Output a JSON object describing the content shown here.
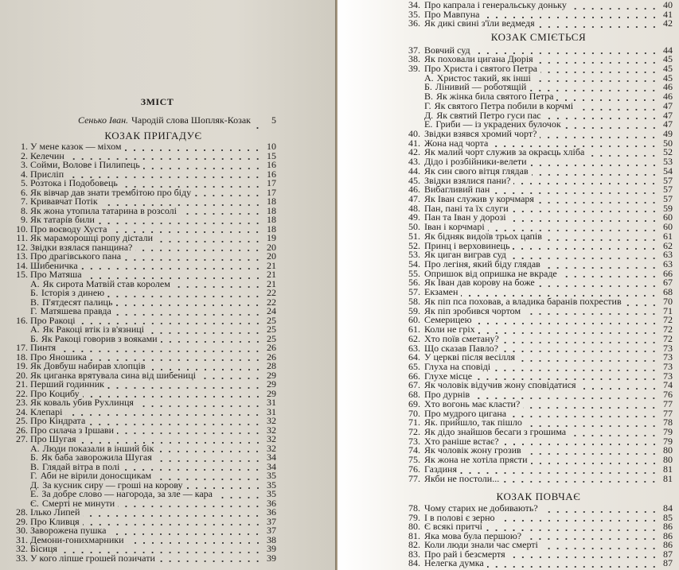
{
  "pages": [
    {
      "title": "ЗМІСТ",
      "intro": {
        "author": "Сенько Іван.",
        "title": "Чародій слова Шопляк-Козак",
        "page": "5"
      },
      "sections": [
        {
          "heading": "КОЗАК ПРИГАДУЄ",
          "entries": [
            {
              "num": "1.",
              "title": "У мене казок — міхом",
              "page": "10"
            },
            {
              "num": "2.",
              "title": "Келечин",
              "page": "15"
            },
            {
              "num": "3.",
              "title": "Сойми, Волове і Пилипець",
              "page": "16"
            },
            {
              "num": "4.",
              "title": "Прислiп",
              "page": "16"
            },
            {
              "num": "5.",
              "title": "Розтока і Подобовець",
              "page": "17"
            },
            {
              "num": "6.",
              "title": "Як вівчар дав знати трембітою про біду",
              "page": "17"
            },
            {
              "num": "7.",
              "title": "Кривавчат Потік",
              "page": "18"
            },
            {
              "num": "8.",
              "title": "Як жона утопила татарина в розсолі",
              "page": "18"
            },
            {
              "num": "9.",
              "title": "Як татарів били",
              "page": "18"
            },
            {
              "num": "10.",
              "title": "Про воєводу Хуста",
              "page": "18"
            },
            {
              "num": "11.",
              "title": "Як мараморошці ропу дістали",
              "page": "19"
            },
            {
              "num": "12.",
              "title": "Звідки взялася панщина?",
              "page": "20"
            },
            {
              "num": "13.",
              "title": "Про драгівського пана",
              "page": "20"
            },
            {
              "num": "14.",
              "title": "Шибеничка",
              "page": "21"
            },
            {
              "num": "15.",
              "title": "Про Матяша",
              "page": "21",
              "sub": [
                {
                  "letter": "А.",
                  "title": "Як сирота Матвій став королем",
                  "page": "21"
                },
                {
                  "letter": "Б.",
                  "title": "Історія з динею",
                  "page": "22"
                },
                {
                  "letter": "В.",
                  "title": "П'ятдесят палиць",
                  "page": "22"
                },
                {
                  "letter": "Г.",
                  "title": "Матяшева правда",
                  "page": "24"
                }
              ]
            },
            {
              "num": "16.",
              "title": "Про Ракоці",
              "page": "25",
              "sub": [
                {
                  "letter": "А.",
                  "title": "Як Ракоці втік із в'язниці",
                  "page": "25"
                },
                {
                  "letter": "Б.",
                  "title": "Як Ракоці говорив з вояками",
                  "page": "25"
                }
              ]
            },
            {
              "num": "17.",
              "title": "Пинтя",
              "page": "26"
            },
            {
              "num": "18.",
              "title": "Про Яношика",
              "page": "26"
            },
            {
              "num": "19.",
              "title": "Як Довбуш набирав хлопців",
              "page": "28"
            },
            {
              "num": "20.",
              "title": "Як циганка врятувала сина від шибениці",
              "page": "29"
            },
            {
              "num": "21.",
              "title": "Перший годинник",
              "page": "29"
            },
            {
              "num": "22.",
              "title": "Про Коцибу",
              "page": "29"
            },
            {
              "num": "23.",
              "title": "Як коваль убив Рухлинця",
              "page": "31"
            },
            {
              "num": "24.",
              "title": "Клепарі",
              "page": "31"
            },
            {
              "num": "25.",
              "title": "Про Кіндрата",
              "page": "32"
            },
            {
              "num": "26.",
              "title": "Про силача з Іршави",
              "page": "32"
            },
            {
              "num": "27.",
              "title": "Про Шугая",
              "page": "32",
              "sub": [
                {
                  "letter": "А.",
                  "title": "Люди показали в інший бік",
                  "page": "32"
                },
                {
                  "letter": "Б.",
                  "title": "Як баба заворожила Шугая",
                  "page": "34"
                },
                {
                  "letter": "В.",
                  "title": "Глядай вітра в полі",
                  "page": "34"
                },
                {
                  "letter": "Г.",
                  "title": "Аби не вірили доносщикам",
                  "page": "35"
                },
                {
                  "letter": "Д.",
                  "title": "За кусник сиру — гроші на корову",
                  "page": "35"
                },
                {
                  "letter": "Е.",
                  "title": "За добре слово — нагорода, за зле — кара",
                  "page": "35"
                },
                {
                  "letter": "Є.",
                  "title": "Смерті не минути",
                  "page": "36"
                }
              ]
            },
            {
              "num": "28.",
              "title": "Ілько Липей",
              "page": "36"
            },
            {
              "num": "29.",
              "title": "Про Кливця",
              "page": "37"
            },
            {
              "num": "30.",
              "title": "Заворожена пушка",
              "page": "37"
            },
            {
              "num": "31.",
              "title": "Демони-гонихмарники",
              "page": "38"
            },
            {
              "num": "32.",
              "title": "Бісиця",
              "page": "39"
            },
            {
              "num": "33.",
              "title": "У кого ліпше грошей позичати",
              "page": "39"
            }
          ]
        }
      ]
    },
    {
      "sections": [
        {
          "heading": "",
          "entries": [
            {
              "num": "34.",
              "title": "Про капрала і генеральську доньку",
              "page": "40"
            },
            {
              "num": "35.",
              "title": "Про Мавпуна",
              "page": "41"
            },
            {
              "num": "36.",
              "title": "Як дикі свині з'їли ведмедя",
              "page": "42"
            }
          ]
        },
        {
          "heading": "КОЗАК СМІЄТЬСЯ",
          "entries": [
            {
              "num": "37.",
              "title": "Вовчий суд",
              "page": "44"
            },
            {
              "num": "38.",
              "title": "Як поховали цигана Дюрія",
              "page": "45"
            },
            {
              "num": "39.",
              "title": "Про Христа і святого Петра",
              "page": "45",
              "sub": [
                {
                  "letter": "А.",
                  "title": "Христос такий, як інші",
                  "page": "45"
                },
                {
                  "letter": "Б.",
                  "title": "Лінивий — роботящій",
                  "page": "46"
                },
                {
                  "letter": "В.",
                  "title": "Як жінка била святого Петра",
                  "page": "46"
                },
                {
                  "letter": "Г.",
                  "title": "Як святого Петра побили в корчмі",
                  "page": "47"
                },
                {
                  "letter": "Д.",
                  "title": "Як святий Петро гуси пас",
                  "page": "47"
                },
                {
                  "letter": "Е.",
                  "title": "Гриби — із украдених булочок",
                  "page": "47"
                }
              ]
            },
            {
              "num": "40.",
              "title": "Звідки взявся хромий чорт?",
              "page": "49"
            },
            {
              "num": "41.",
              "title": "Жона над чорта",
              "page": "50"
            },
            {
              "num": "42.",
              "title": "Як малий чорт служив за окраєць хліба",
              "page": "52"
            },
            {
              "num": "43.",
              "title": "Дідо і розбійники-велети",
              "page": "53"
            },
            {
              "num": "44.",
              "title": "Як син свого вітця глядав",
              "page": "54"
            },
            {
              "num": "45.",
              "title": "Звідки взялися пани?",
              "page": "57"
            },
            {
              "num": "46.",
              "title": "Вибагливий пан",
              "page": "57"
            },
            {
              "num": "47.",
              "title": "Як Іван служив у корчмаря",
              "page": "57"
            },
            {
              "num": "48.",
              "title": "Пан, пані та їх слуги",
              "page": "59"
            },
            {
              "num": "49.",
              "title": "Пан та Іван у дорозі",
              "page": "60"
            },
            {
              "num": "50.",
              "title": "Іван і корчмарі",
              "page": "60"
            },
            {
              "num": "51.",
              "title": "Як бідняк видоїв трьох цапів",
              "page": "61"
            },
            {
              "num": "52.",
              "title": "Принц і верховинець",
              "page": "62"
            },
            {
              "num": "53.",
              "title": "Як циган виграв суд",
              "page": "63"
            },
            {
              "num": "54.",
              "title": "Про легіня, який біду глядав",
              "page": "63"
            },
            {
              "num": "55.",
              "title": "Опришок від опришка не вкраде",
              "page": "66"
            },
            {
              "num": "56.",
              "title": "Як Іван дав корову на боже",
              "page": "67"
            },
            {
              "num": "57.",
              "title": "Екзамен",
              "page": "68"
            },
            {
              "num": "58.",
              "title": "Як піп пса поховав, а владика баранів похрестив",
              "page": "70"
            },
            {
              "num": "59.",
              "title": "Як піп зробився чортом",
              "page": "71"
            },
            {
              "num": "60.",
              "title": "Семерицею",
              "page": "72"
            },
            {
              "num": "61.",
              "title": "Коли не гріх",
              "page": "72"
            },
            {
              "num": "62.",
              "title": "Хто поїв сметану?",
              "page": "72"
            },
            {
              "num": "63.",
              "title": "Що сказав Павло?",
              "page": "73"
            },
            {
              "num": "64.",
              "title": "У церкві після весілля",
              "page": "73"
            },
            {
              "num": "65.",
              "title": "Глуха на сповіді",
              "page": "73"
            },
            {
              "num": "66.",
              "title": "Глухе місце",
              "page": "73"
            },
            {
              "num": "67.",
              "title": "Як чоловік відучив жону сповідатися",
              "page": "74"
            },
            {
              "num": "68.",
              "title": "Про дурнів",
              "page": "76"
            },
            {
              "num": "69.",
              "title": "Хто вогонь має класти?",
              "page": "77"
            },
            {
              "num": "70.",
              "title": "Про мудрого цигана",
              "page": "77"
            },
            {
              "num": "71.",
              "title": "Як. прийшло, так пішло",
              "page": "78"
            },
            {
              "num": "72.",
              "title": "Як дідо знайшов бесаги з грошима",
              "page": "79"
            },
            {
              "num": "73.",
              "title": "Хто раніше встає?",
              "page": "79"
            },
            {
              "num": "74.",
              "title": "Як чоловік жону грозив",
              "page": "80"
            },
            {
              "num": "75.",
              "title": "Як жона не хотіла прясти",
              "page": "80"
            },
            {
              "num": "76.",
              "title": "Газдиня",
              "page": "81"
            },
            {
              "num": "77.",
              "title": "Якби не постоли...",
              "page": "81"
            }
          ]
        },
        {
          "heading": "КОЗАК ПОВЧАЄ",
          "entries": [
            {
              "num": "78.",
              "title": "Чому старих не добивають?",
              "page": "84"
            },
            {
              "num": "79.",
              "title": "І в полові є зерно",
              "page": "85"
            },
            {
              "num": "80.",
              "title": "Є всякі притчі",
              "page": "86"
            },
            {
              "num": "81.",
              "title": "Яка мова була першою?",
              "page": "86"
            },
            {
              "num": "82.",
              "title": "Коли люди знали час смерті",
              "page": "86"
            },
            {
              "num": "83.",
              "title": "Про рай і безсмертя",
              "page": "87"
            },
            {
              "num": "84.",
              "title": "Нелегка думка",
              "page": "87"
            }
          ]
        }
      ]
    }
  ]
}
